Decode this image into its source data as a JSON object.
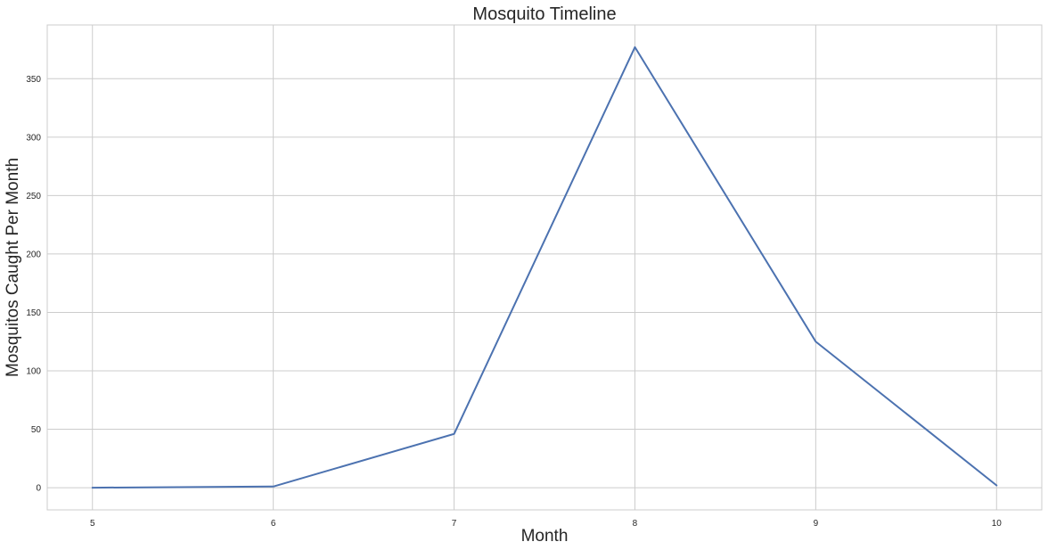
{
  "chart_data": {
    "type": "line",
    "title": "Mosquito Timeline",
    "xlabel": "Month",
    "ylabel": "Mosquitos Caught Per Month",
    "x": [
      5,
      6,
      7,
      8,
      9,
      10
    ],
    "series": [
      {
        "values": [
          0,
          1,
          46,
          377,
          125,
          2
        ],
        "color": "#4c72b0"
      }
    ],
    "xticks": [
      "5",
      "6",
      "7",
      "8",
      "9",
      "10"
    ],
    "yticks": [
      "0",
      "50",
      "100",
      "150",
      "200",
      "250",
      "300",
      "350"
    ],
    "xlim": [
      4.75,
      10.25
    ],
    "ylim": [
      -19,
      396
    ],
    "grid": true,
    "colors": {
      "axes_edge": "#cccccc",
      "grid": "#cccccc",
      "text": "#262626"
    }
  }
}
